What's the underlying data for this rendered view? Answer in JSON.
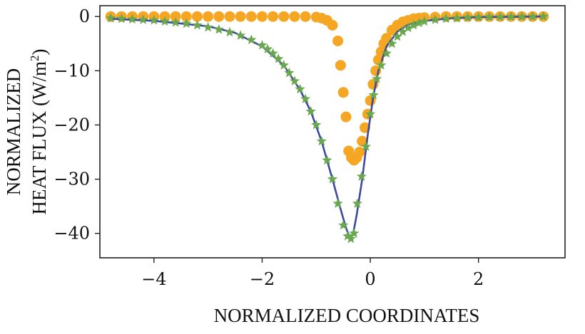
{
  "chart_data": {
    "type": "scatter",
    "title": "",
    "xlabel": "NORMALIZED COORDINATES",
    "ylabel_lines": [
      "NORMALIZED",
      "HEAT FLUX (W/m",
      "2",
      ")"
    ],
    "xlim": [
      -5.0,
      3.6
    ],
    "ylim": [
      -44.5,
      2.0
    ],
    "x_ticks": [
      -4,
      -2,
      0,
      2
    ],
    "x_tick_labels": [
      "−4",
      "−2",
      "0",
      "2"
    ],
    "y_ticks": [
      0,
      -10,
      -20,
      -30,
      -40
    ],
    "y_tick_labels": [
      "0",
      "−10",
      "−20",
      "−30",
      "−40"
    ],
    "grid": false,
    "series": [
      {
        "name": "solid line",
        "style": "line",
        "color": "#3d4aa0",
        "x": [
          -4.8,
          -4.0,
          -3.0,
          -2.5,
          -2.0,
          -1.6,
          -1.3,
          -1.1,
          -0.9,
          -0.7,
          -0.55,
          -0.45,
          -0.38,
          -0.32,
          -0.25,
          -0.15,
          -0.05,
          0.05,
          0.15,
          0.3,
          0.5,
          0.7,
          1.0,
          1.5,
          2.0,
          3.2
        ],
        "y": [
          -0.4,
          -0.8,
          -1.8,
          -3.0,
          -5.5,
          -9.0,
          -13.5,
          -17.5,
          -23.0,
          -30.0,
          -35.5,
          -39.0,
          -40.8,
          -40.2,
          -36.5,
          -30.0,
          -22.0,
          -15.0,
          -10.0,
          -5.5,
          -2.8,
          -1.5,
          -0.8,
          -0.3,
          -0.1,
          0.0
        ]
      },
      {
        "name": "green stars",
        "style": "star",
        "color": "#6aa84f",
        "x": [
          -4.8,
          -4.6,
          -4.4,
          -4.2,
          -4.0,
          -3.8,
          -3.6,
          -3.4,
          -3.2,
          -3.0,
          -2.8,
          -2.6,
          -2.4,
          -2.2,
          -2.0,
          -1.9,
          -1.8,
          -1.7,
          -1.6,
          -1.5,
          -1.4,
          -1.3,
          -1.2,
          -1.1,
          -1.0,
          -0.9,
          -0.8,
          -0.7,
          -0.6,
          -0.5,
          -0.42,
          -0.36,
          -0.3,
          -0.24,
          -0.16,
          -0.08,
          0.0,
          0.06,
          0.12,
          0.2,
          0.3,
          0.4,
          0.5,
          0.6,
          0.7,
          0.8,
          0.9,
          1.0,
          1.2,
          1.4,
          1.6,
          1.8,
          2.0,
          2.2,
          2.4,
          2.6,
          2.8,
          3.0,
          3.2
        ],
        "y": [
          -0.3,
          -0.4,
          -0.5,
          -0.6,
          -0.7,
          -0.9,
          -1.1,
          -1.3,
          -1.6,
          -2.0,
          -2.4,
          -2.9,
          -3.5,
          -4.3,
          -5.3,
          -6.0,
          -6.8,
          -7.8,
          -9.0,
          -10.4,
          -11.9,
          -13.4,
          -15.2,
          -17.5,
          -20.0,
          -23.0,
          -26.5,
          -30.0,
          -34.5,
          -38.5,
          -40.5,
          -41.0,
          -40.0,
          -34.5,
          -29.5,
          -24.0,
          -18.0,
          -14.5,
          -11.5,
          -9.0,
          -6.8,
          -5.0,
          -3.7,
          -2.8,
          -2.1,
          -1.6,
          -1.2,
          -0.9,
          -0.6,
          -0.4,
          -0.3,
          -0.2,
          -0.15,
          -0.1,
          -0.08,
          -0.05,
          -0.03,
          -0.02,
          0.0
        ]
      },
      {
        "name": "orange dots",
        "style": "dot",
        "color": "#f5a623",
        "x": [
          -4.8,
          -4.6,
          -4.4,
          -4.2,
          -4.0,
          -3.8,
          -3.6,
          -3.4,
          -3.2,
          -3.0,
          -2.8,
          -2.6,
          -2.4,
          -2.2,
          -2.0,
          -1.8,
          -1.6,
          -1.4,
          -1.2,
          -1.0,
          -0.9,
          -0.8,
          -0.7,
          -0.6,
          -0.55,
          -0.5,
          -0.45,
          -0.4,
          -0.35,
          -0.3,
          -0.25,
          -0.2,
          -0.15,
          -0.1,
          -0.05,
          0.0,
          0.05,
          0.1,
          0.15,
          0.2,
          0.25,
          0.3,
          0.4,
          0.5,
          0.6,
          0.7,
          0.8,
          0.9,
          1.0,
          1.2,
          1.4,
          1.6,
          1.8,
          2.0,
          2.2,
          2.4,
          2.6,
          2.8,
          3.0,
          3.2
        ],
        "y": [
          0.0,
          0.0,
          0.0,
          0.0,
          0.0,
          0.0,
          0.0,
          0.0,
          0.0,
          0.0,
          0.0,
          0.0,
          0.0,
          0.0,
          0.0,
          0.0,
          0.0,
          0.0,
          0.0,
          -0.1,
          -0.3,
          -0.7,
          -1.6,
          -4.5,
          -9.0,
          -14.0,
          -18.5,
          -24.8,
          -26.0,
          -26.5,
          -26.0,
          -25.0,
          -23.0,
          -20.5,
          -18.0,
          -15.5,
          -12.5,
          -10.0,
          -8.0,
          -6.5,
          -5.0,
          -4.0,
          -2.5,
          -1.6,
          -1.0,
          -0.7,
          -0.4,
          -0.3,
          -0.2,
          -0.1,
          0.0,
          0.0,
          0.0,
          0.0,
          0.0,
          0.0,
          0.0,
          0.0,
          0.0,
          0.0
        ]
      }
    ]
  }
}
